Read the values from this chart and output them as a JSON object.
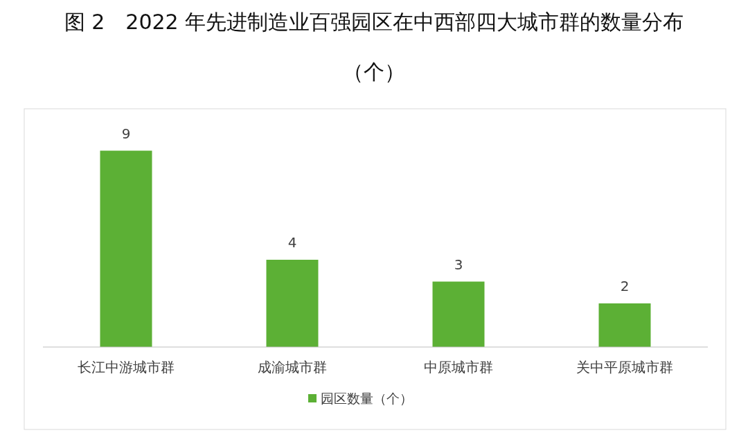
{
  "chart_data": {
    "type": "bar",
    "title": "图 2　2022 年先进制造业百强园区在中西部四大城市群的数量分布（个）",
    "categories": [
      "长江中游城市群",
      "成渝城市群",
      "中原城市群",
      "关中平原城市群"
    ],
    "series": [
      {
        "name": "园区数量（个）",
        "color": "#5cb035",
        "values": [
          9,
          4,
          3,
          2
        ]
      }
    ],
    "data_labels": true,
    "legend": "bottom"
  }
}
